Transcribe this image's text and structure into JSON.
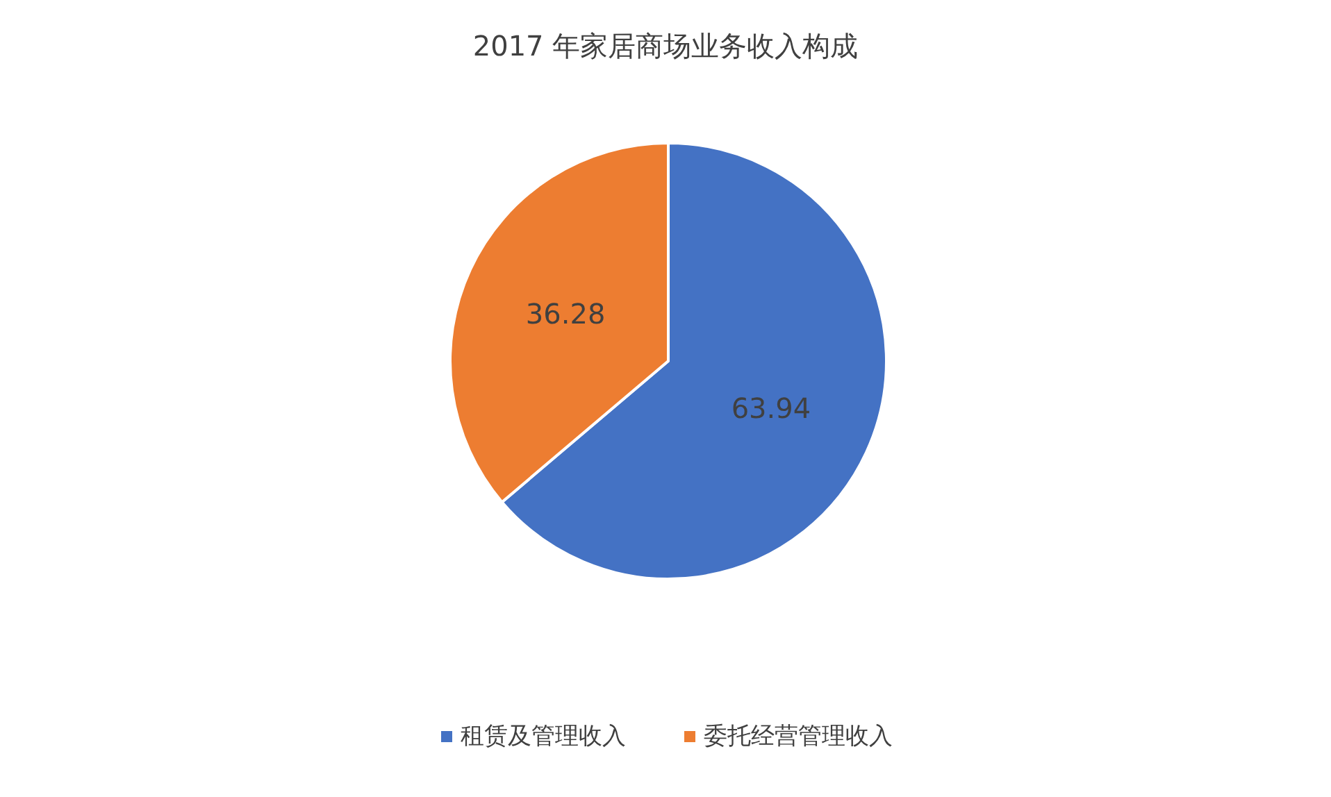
{
  "chart_data": {
    "type": "pie",
    "title": "2017 年家居商场业务收入构成",
    "categories": [
      "租赁及管理收入",
      "委托经营管理收入"
    ],
    "values": [
      63.94,
      36.28
    ],
    "colors": [
      "#4472c4",
      "#ed7d31"
    ],
    "data_labels": true,
    "legend": "bottom"
  }
}
